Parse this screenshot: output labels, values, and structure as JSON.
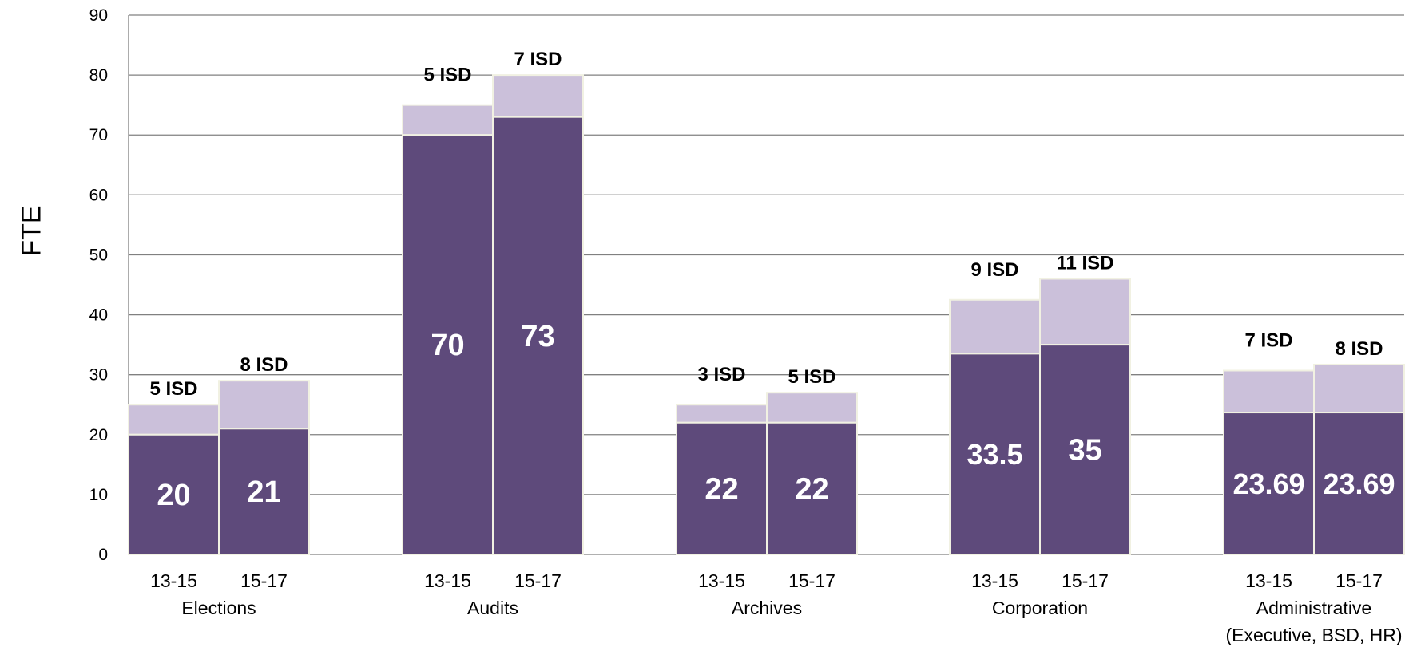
{
  "chart_data": {
    "type": "bar",
    "stacked": true,
    "ylabel": "FTE",
    "ylim": [
      0,
      90
    ],
    "yticks": [
      0,
      10,
      20,
      30,
      40,
      50,
      60,
      70,
      80,
      90
    ],
    "grid": true,
    "colors": {
      "base": "#5e4a7b",
      "isd": "#cbc0da",
      "grid": "#808080",
      "bar_edge": "#f1f1e2"
    },
    "groups": [
      {
        "name": "Elections",
        "name_lines": [
          "Elections"
        ],
        "bars": [
          {
            "period": "13-15",
            "base": 20,
            "base_label": "20",
            "isd": 5,
            "isd_label": "5 ISD"
          },
          {
            "period": "15-17",
            "base": 21,
            "base_label": "21",
            "isd": 8,
            "isd_label": "8 ISD"
          }
        ]
      },
      {
        "name": "Audits",
        "name_lines": [
          "Audits"
        ],
        "bars": [
          {
            "period": "13-15",
            "base": 70,
            "base_label": "70",
            "isd": 5,
            "isd_label": "5 ISD"
          },
          {
            "period": "15-17",
            "base": 73,
            "base_label": "73",
            "isd": 7,
            "isd_label": "7 ISD"
          }
        ]
      },
      {
        "name": "Archives",
        "name_lines": [
          "Archives"
        ],
        "bars": [
          {
            "period": "13-15",
            "base": 22,
            "base_label": "22",
            "isd": 3,
            "isd_label": "3 ISD"
          },
          {
            "period": "15-17",
            "base": 22,
            "base_label": "22",
            "isd": 5,
            "isd_label": "5 ISD"
          }
        ]
      },
      {
        "name": "Corporation",
        "name_lines": [
          "Corporation"
        ],
        "bars": [
          {
            "period": "13-15",
            "base": 33.5,
            "base_label": "33.5",
            "isd": 9,
            "isd_label": "9 ISD"
          },
          {
            "period": "15-17",
            "base": 35,
            "base_label": "35",
            "isd": 11,
            "isd_label": "11 ISD"
          }
        ]
      },
      {
        "name": "Administrative (Executive, BSD, HR)",
        "name_lines": [
          "Administrative",
          "(Executive, BSD, HR)"
        ],
        "bars": [
          {
            "period": "13-15",
            "base": 23.69,
            "base_label": "23.69",
            "isd": 7,
            "isd_label": "7 ISD"
          },
          {
            "period": "15-17",
            "base": 23.69,
            "base_label": "23.69",
            "isd": 8,
            "isd_label": "8 ISD"
          }
        ]
      }
    ]
  }
}
